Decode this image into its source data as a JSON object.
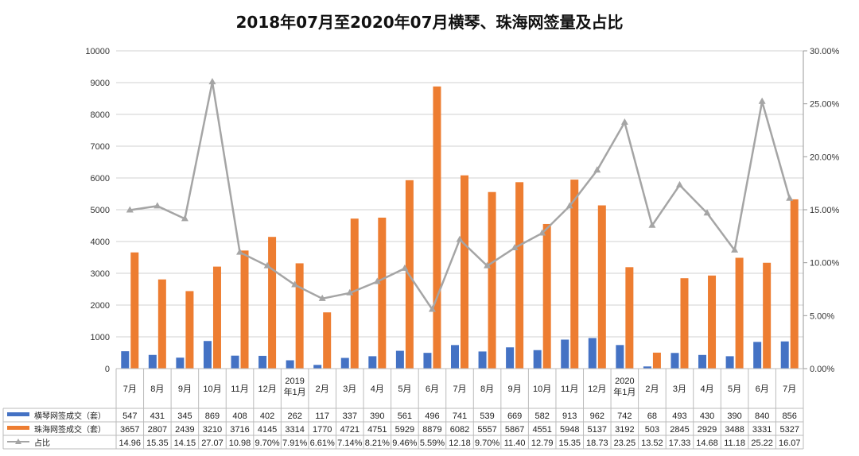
{
  "chart_data": {
    "type": "bar+line",
    "title": "2018年07月至2020年07月横琴、珠海网签量及占比",
    "categories": [
      "7月",
      "8月",
      "9月",
      "10月",
      "11月",
      "12月",
      "2019\n年1月",
      "2月",
      "3月",
      "4月",
      "5月",
      "6月",
      "7月",
      "8月",
      "9月",
      "10月",
      "11月",
      "12月",
      "2020\n年1月",
      "2月",
      "3月",
      "4月",
      "5月",
      "6月",
      "7月"
    ],
    "y_left": {
      "range": [
        0,
        10000
      ],
      "ticks": [
        0,
        1000,
        2000,
        3000,
        4000,
        5000,
        6000,
        7000,
        8000,
        9000,
        10000
      ]
    },
    "y_right": {
      "range": [
        0,
        30
      ],
      "unit": "%",
      "ticks": [
        "0.00%",
        "5.00%",
        "10.00%",
        "15.00%",
        "20.00%",
        "25.00%",
        "30.00%"
      ]
    },
    "grid": "horizontal",
    "legend": "data-table",
    "series": [
      {
        "name": "横琴网签成交（套）",
        "type": "bar",
        "axis": "left",
        "color": "#4472C4",
        "values": [
          547,
          431,
          345,
          869,
          408,
          402,
          262,
          117,
          337,
          390,
          561,
          496,
          741,
          539,
          669,
          582,
          913,
          962,
          742,
          68,
          493,
          430,
          390,
          840,
          856
        ],
        "labels": [
          "547",
          "431",
          "345",
          "869",
          "408",
          "402",
          "262",
          "117",
          "337",
          "390",
          "561",
          "496",
          "741",
          "539",
          "669",
          "582",
          "913",
          "962",
          "742",
          "68",
          "493",
          "430",
          "390",
          "840",
          "856"
        ]
      },
      {
        "name": "珠海网签成交（套）",
        "type": "bar",
        "axis": "left",
        "color": "#ED7D31",
        "values": [
          3657,
          2807,
          2439,
          3210,
          3716,
          4145,
          3314,
          1770,
          4721,
          4751,
          5929,
          8879,
          6082,
          5557,
          5867,
          4551,
          5948,
          5137,
          3192,
          503,
          2845,
          2929,
          3488,
          3331,
          5327
        ],
        "labels": [
          "3657",
          "2807",
          "2439",
          "3210",
          "3716",
          "4145",
          "3314",
          "1770",
          "4721",
          "4751",
          "5929",
          "8879",
          "6082",
          "5557",
          "5867",
          "4551",
          "5948",
          "5137",
          "3192",
          "503",
          "2845",
          "2929",
          "3488",
          "3331",
          "5327"
        ]
      },
      {
        "name": "占比",
        "type": "line",
        "axis": "right",
        "color": "#A5A5A5",
        "values": [
          14.96,
          15.35,
          14.15,
          27.07,
          10.98,
          9.7,
          7.91,
          6.61,
          7.14,
          8.21,
          9.46,
          5.59,
          12.18,
          9.7,
          11.4,
          12.79,
          15.35,
          18.73,
          23.25,
          13.52,
          17.33,
          14.68,
          11.18,
          25.22,
          16.07
        ],
        "labels": [
          "14.96",
          "15.35",
          "14.15",
          "27.07",
          "10.98",
          "9.70%",
          "7.91%",
          "6.61%",
          "7.14%",
          "8.21%",
          "9.46%",
          "5.59%",
          "12.18",
          "9.70%",
          "11.40",
          "12.79",
          "15.35",
          "18.73",
          "23.25",
          "13.52",
          "17.33",
          "14.68",
          "11.18",
          "25.22",
          "16.07"
        ]
      }
    ]
  }
}
